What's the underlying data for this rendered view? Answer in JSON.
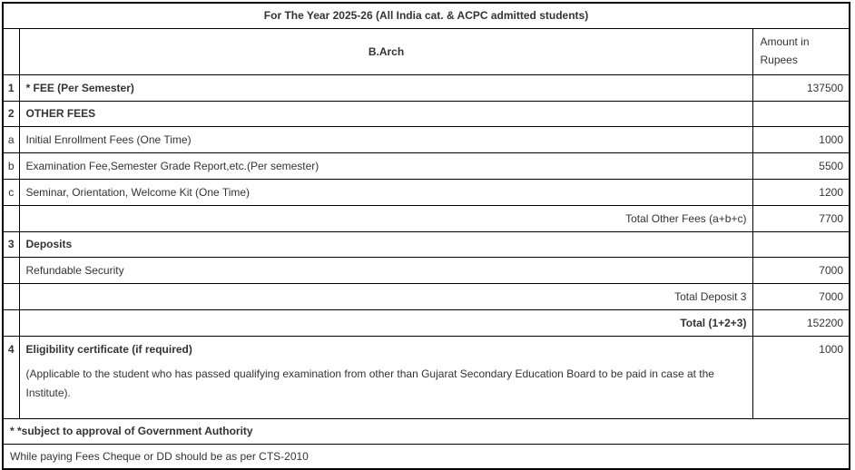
{
  "title": "For The Year 2025-26 (All India cat. & ACPC admitted students)",
  "header": {
    "program": "B.Arch",
    "amount_label": "Amount in Rupees"
  },
  "rows": [
    {
      "num": "1",
      "label": "* FEE (Per Semester)",
      "amount": "137500"
    },
    {
      "num": "2",
      "label": "OTHER FEES",
      "amount": ""
    },
    {
      "num": "a",
      "label": "Initial Enrollment Fees (One Time)",
      "amount": "1000"
    },
    {
      "num": "b",
      "label": "Examination Fee,Semester Grade Report,etc.(Per semester)",
      "amount": "5500"
    },
    {
      "num": "c",
      "label": "Seminar, Orientation, Welcome Kit (One Time)",
      "amount": "1200"
    },
    {
      "num": "",
      "label": "Total Other Fees (a+b+c)",
      "amount": "7700"
    },
    {
      "num": "3",
      "label": "Deposits",
      "amount": ""
    },
    {
      "num": "",
      "label": "Refundable Security",
      "amount": "7000"
    },
    {
      "num": "",
      "label": "Total Deposit 3",
      "amount": "7000"
    },
    {
      "num": "",
      "label": "Total (1+2+3)",
      "amount": "152200"
    },
    {
      "num": "4",
      "label": "Eligibility certificate (if required)",
      "note": "(Applicable to the student who has passed qualifying examination from other than Gujarat Secondary Education Board to be paid in case at the Institute).",
      "amount": "1000"
    }
  ],
  "footers": [
    {
      "text": "* *subject to approval of Government Authority"
    },
    {
      "text": "While paying Fees Cheque or DD should be as per CTS-2010"
    }
  ]
}
